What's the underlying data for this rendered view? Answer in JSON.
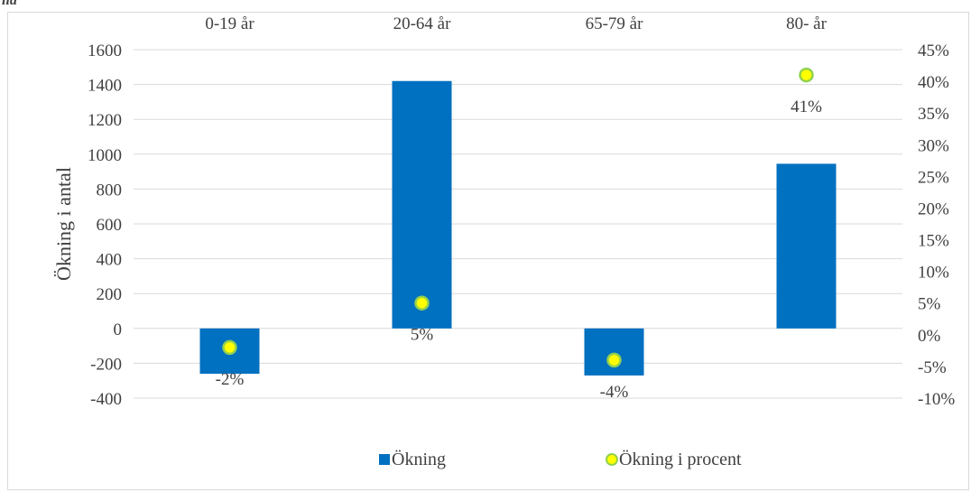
{
  "corner_text": "lla",
  "chart_data": {
    "type": "bar",
    "categories": [
      "0-19 år",
      "20-64 år",
      "65-79 år",
      "80- år"
    ],
    "series": [
      {
        "name": "Ökning",
        "type": "bar",
        "axis": "left",
        "color": "#0070C0",
        "values": [
          -260,
          1420,
          -270,
          945
        ]
      },
      {
        "name": "Ökning i procent",
        "type": "scatter",
        "axis": "right",
        "color": "#FFFF00",
        "edge_color": "#92D050",
        "values": [
          -0.02,
          0.05,
          -0.04,
          0.41
        ],
        "labels": [
          "-2%",
          "5%",
          "-4%",
          "41%"
        ]
      }
    ],
    "ylabel": "Ökning i antal",
    "y2label": "",
    "ylim": [
      -400,
      1600
    ],
    "yticks": [
      -400,
      -200,
      0,
      200,
      400,
      600,
      800,
      1000,
      1200,
      1400,
      1600
    ],
    "ytick_labels": [
      "-400",
      "-200",
      "0",
      "200",
      "400",
      "600",
      "800",
      "1000",
      "1200",
      "1400",
      "1600"
    ],
    "y2lim": [
      -0.1,
      0.45
    ],
    "y2ticks": [
      -0.1,
      -0.05,
      0,
      0.05,
      0.1,
      0.15,
      0.2,
      0.25,
      0.3,
      0.35,
      0.4,
      0.45
    ],
    "y2tick_labels": [
      "-10%",
      "-5%",
      "0%",
      "5%",
      "10%",
      "15%",
      "20%",
      "25%",
      "30%",
      "35%",
      "40%",
      "45%"
    ],
    "category_axis_position": "top",
    "grid": true,
    "legend": [
      "Ökning",
      "Ökning i procent"
    ],
    "legend_position": "bottom"
  }
}
